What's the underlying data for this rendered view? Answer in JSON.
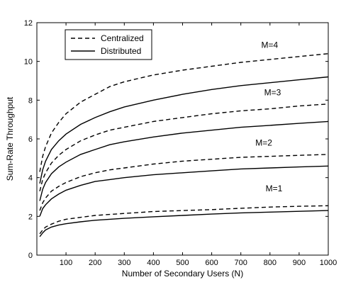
{
  "chart_data": {
    "type": "line",
    "xlabel": "Number of Secondary Users (N)",
    "ylabel": "Sum-Rate Throughput",
    "xlim": [
      0,
      1000
    ],
    "ylim": [
      0,
      12
    ],
    "xticks": [
      100,
      200,
      300,
      400,
      500,
      600,
      700,
      800,
      900,
      1000
    ],
    "yticks": [
      0,
      2,
      4,
      6,
      8,
      10,
      12
    ],
    "grid": false,
    "legend": {
      "position": "top-left",
      "entries": [
        {
          "label": "Centralized",
          "style": "dashed"
        },
        {
          "label": "Distributed",
          "style": "solid"
        }
      ]
    },
    "x": [
      10,
      20,
      30,
      50,
      75,
      100,
      150,
      200,
      250,
      300,
      400,
      500,
      600,
      700,
      800,
      900,
      1000
    ],
    "series": [
      {
        "group": "M=4",
        "style": "dashed",
        "values": [
          4.3,
          5.1,
          5.6,
          6.3,
          6.85,
          7.3,
          7.9,
          8.3,
          8.7,
          8.95,
          9.3,
          9.55,
          9.75,
          9.95,
          10.1,
          10.25,
          10.4
        ]
      },
      {
        "group": "M=4",
        "style": "solid",
        "values": [
          3.7,
          4.4,
          4.85,
          5.45,
          5.9,
          6.25,
          6.75,
          7.1,
          7.4,
          7.65,
          8.0,
          8.3,
          8.55,
          8.75,
          8.9,
          9.05,
          9.2
        ]
      },
      {
        "group": "M=3",
        "style": "dashed",
        "values": [
          3.3,
          3.9,
          4.25,
          4.75,
          5.15,
          5.45,
          5.9,
          6.2,
          6.45,
          6.6,
          6.9,
          7.1,
          7.3,
          7.45,
          7.55,
          7.7,
          7.8
        ]
      },
      {
        "group": "M=3",
        "style": "solid",
        "values": [
          2.8,
          3.4,
          3.75,
          4.2,
          4.55,
          4.8,
          5.2,
          5.45,
          5.7,
          5.85,
          6.1,
          6.3,
          6.45,
          6.6,
          6.7,
          6.8,
          6.9
        ]
      },
      {
        "group": "M=2",
        "style": "dashed",
        "values": [
          2.3,
          2.7,
          2.95,
          3.3,
          3.55,
          3.75,
          4.05,
          4.25,
          4.4,
          4.5,
          4.7,
          4.85,
          4.95,
          5.05,
          5.1,
          5.15,
          5.2
        ]
      },
      {
        "group": "M=2",
        "style": "solid",
        "values": [
          2.0,
          2.4,
          2.6,
          2.9,
          3.15,
          3.35,
          3.6,
          3.8,
          3.9,
          4.0,
          4.15,
          4.25,
          4.35,
          4.45,
          4.5,
          4.55,
          4.6
        ]
      },
      {
        "group": "M=1",
        "style": "dashed",
        "values": [
          1.1,
          1.3,
          1.45,
          1.6,
          1.75,
          1.85,
          1.95,
          2.05,
          2.1,
          2.15,
          2.25,
          2.3,
          2.35,
          2.42,
          2.48,
          2.52,
          2.55
        ]
      },
      {
        "group": "M=1",
        "style": "solid",
        "values": [
          0.95,
          1.15,
          1.3,
          1.45,
          1.55,
          1.62,
          1.72,
          1.8,
          1.85,
          1.9,
          1.98,
          2.05,
          2.12,
          2.18,
          2.22,
          2.26,
          2.3
        ]
      }
    ],
    "annotations": [
      {
        "text": "M=4",
        "x": 770,
        "y": 10.7
      },
      {
        "text": "M=3",
        "x": 780,
        "y": 8.25
      },
      {
        "text": "M=2",
        "x": 750,
        "y": 5.65
      },
      {
        "text": "M=1",
        "x": 785,
        "y": 3.3
      }
    ]
  }
}
